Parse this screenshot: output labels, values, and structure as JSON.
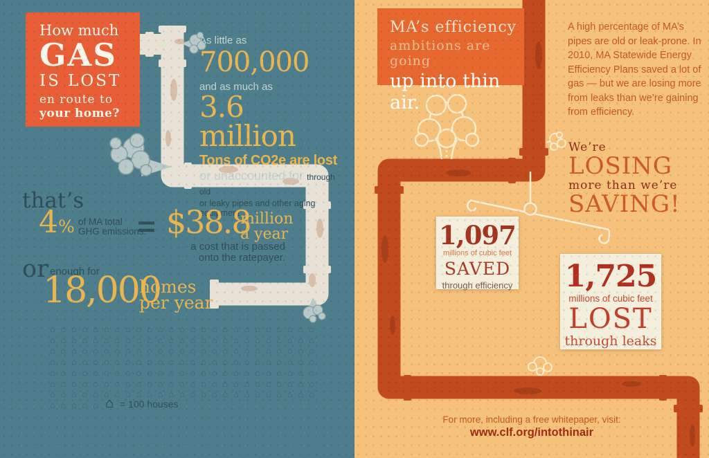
{
  "left": {
    "title": {
      "l1": "How much",
      "l2": "GAS",
      "l3": "IS LOST",
      "l4": "en route to",
      "l5": "your home?"
    },
    "range": {
      "intro": "As little as",
      "low": "700,000",
      "mid": "and as much as",
      "high": "3.6 million",
      "unit": "Tons of CO2e are lost",
      "qual": "or unaccounted for",
      "qual_small": "through old",
      "qual_line2": "or leaky pipes and other aging equipment."
    },
    "share": {
      "lead": "that’s",
      "pct": "4",
      "pct_sign": "%",
      "pct_caption1": "of MA total",
      "pct_caption2": "GHG emissions.",
      "equals": "=",
      "cost": "$38.8",
      "cost_unit1": "million",
      "cost_unit2": "a year",
      "cost_note1": "a cost that is passed",
      "cost_note2": "onto the ratepayer."
    },
    "homes": {
      "lead": "or",
      "sub": "enough for",
      "value": "18,000",
      "unit1": "homes",
      "unit2": "per year"
    },
    "pictogram": {
      "icon_glyph": "⌂",
      "house_count": 180,
      "houses_per_row": 25,
      "legend_glyph": "⌂",
      "legend_text": "= 100 houses"
    }
  },
  "right": {
    "title": {
      "l1": "MA’s efficiency",
      "l2": "ambitions are going",
      "l3": "up into thin air."
    },
    "intro_paragraph": "A high percentage of MA’s pipes are old or leak-prone. In 2010, MA Statewide Energy Efficiency Plans saved a lot of gas — but we are losing more from leaks than we’re gaining from efficiency.",
    "losing": {
      "l1": "We’re",
      "l2": "LOSING",
      "l3": "more than we’re",
      "l4": "SAVING!"
    },
    "saved_card": {
      "value": "1,097",
      "unit": "millions of cubic feet",
      "verb": "SAVED",
      "via": "through efficiency"
    },
    "lost_card": {
      "value": "1,725",
      "unit": "millions of cubic feet",
      "verb": "LOST",
      "via": "through leaks"
    },
    "footer": {
      "prompt": "For more, including a free whitepaper, visit:",
      "url": "www.clf.org/intothinair"
    }
  },
  "colors": {
    "teal_bg": "#4e7e8b",
    "navy": "#2e4e5a",
    "yellow": "#eab54e",
    "orange_box": "#e85e36",
    "pipe_cream": "#e7e1d6",
    "peach_bg": "#f5c17b",
    "rust": "#c04a1e",
    "right_box_orange": "#e7682e",
    "card_cream": "#f4eedd",
    "dark_red": "#a23420",
    "red": "#b13120",
    "link_red": "#a02b15"
  }
}
